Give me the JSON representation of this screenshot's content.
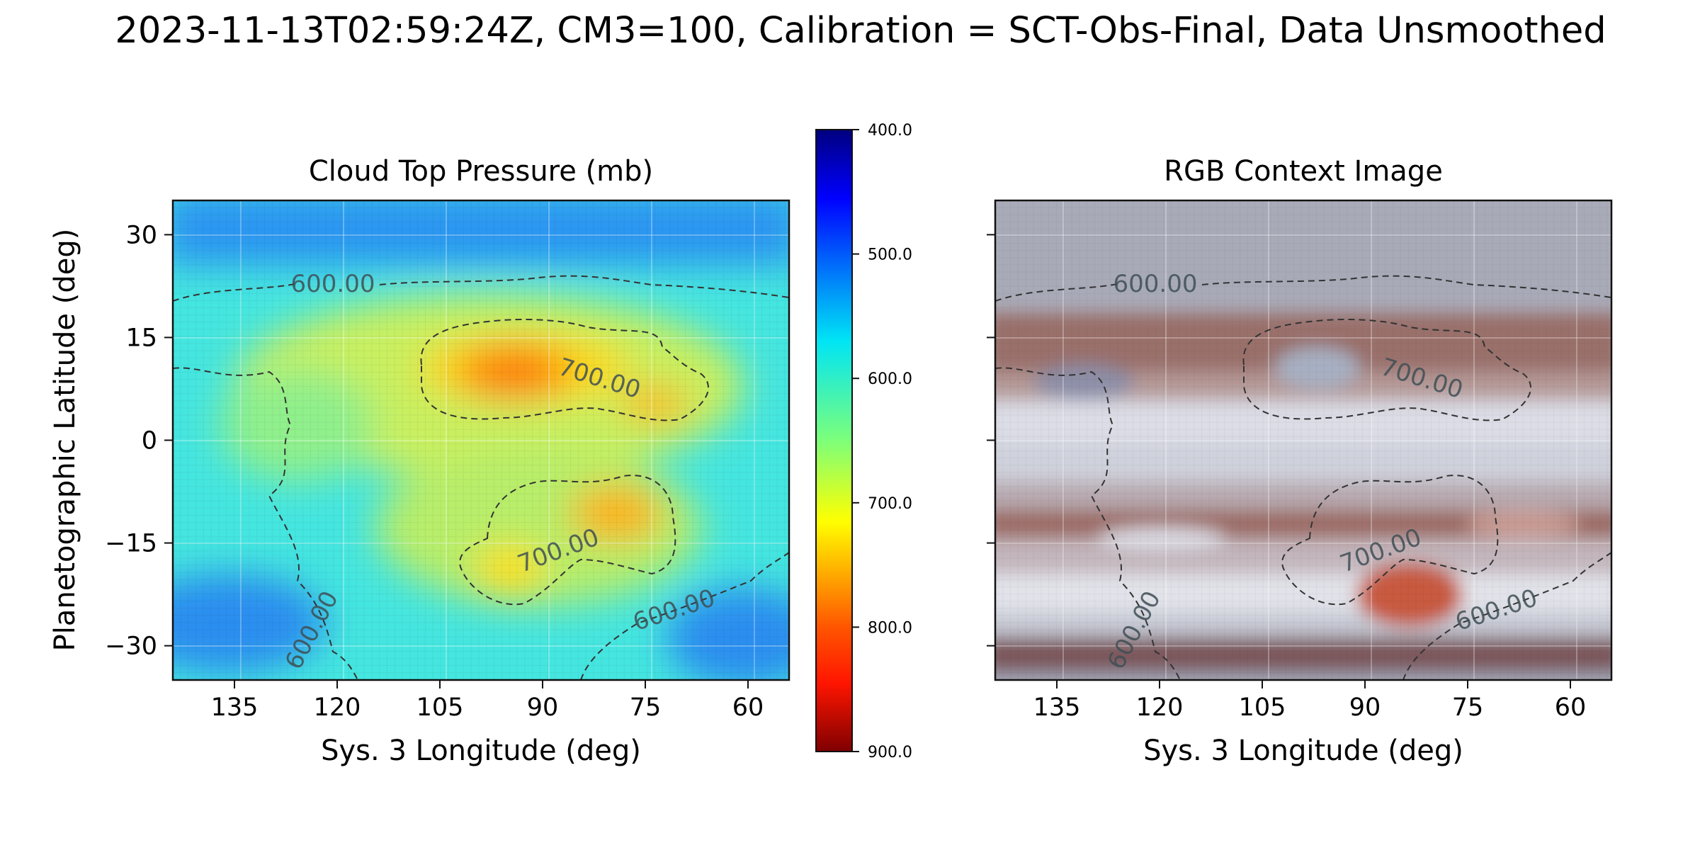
{
  "figure": {
    "suptitle": "2023-11-13T02:59:24Z, CM3=100, Calibration = SCT-Obs-Final, Data Unsmoothed"
  },
  "chart_data": [
    {
      "type": "heatmap",
      "title": "Cloud Top Pressure (mb)",
      "xlabel": "Sys. 3 Longitude (deg)",
      "ylabel": "Planetographic Latitude (deg)",
      "x_reversed": true,
      "xlim": [
        144,
        54
      ],
      "ylim": [
        -35,
        35
      ],
      "xticks": [
        135,
        120,
        105,
        90,
        75,
        60
      ],
      "xtick_labels": [
        "135",
        "120",
        "105",
        "90",
        "75",
        "60"
      ],
      "yticks": [
        30,
        15,
        0,
        -15,
        -30
      ],
      "ytick_labels": [
        "30",
        "15",
        "0",
        "−15",
        "−30"
      ],
      "grid": true,
      "colormap": "jet",
      "colorbar": {
        "vmin": 400,
        "vmax": 900,
        "reversed": true,
        "ticks": [
          400,
          500,
          600,
          700,
          800,
          900
        ],
        "tick_labels": [
          "400.0",
          "500.0",
          "600.0",
          "700.0",
          "800.0",
          "900.0"
        ]
      },
      "contour_levels": [
        "600.00",
        "700.00"
      ],
      "features": [
        {
          "kind": "high-pressure core",
          "lon": 95,
          "lat": 10,
          "value": 810
        },
        {
          "kind": "high-pressure lobe",
          "lon": 75,
          "lat": 5,
          "value": 745
        },
        {
          "kind": "high-pressure core",
          "lon": 79,
          "lat": -12,
          "value": 760
        },
        {
          "kind": "high-pressure core",
          "lon": 94,
          "lat": -19,
          "value": 745
        },
        {
          "kind": "low-pressure band",
          "lat": 28,
          "value": 520
        },
        {
          "kind": "low-pressure region",
          "lon": 137,
          "lat": -28,
          "value": 525
        },
        {
          "kind": "low-pressure region",
          "lon": 60,
          "lat": -30,
          "value": 520
        }
      ]
    },
    {
      "type": "image",
      "title": "RGB Context Image",
      "xlabel": "Sys. 3 Longitude (deg)",
      "x_reversed": true,
      "xlim": [
        144,
        54
      ],
      "ylim": [
        -35,
        35
      ],
      "xticks": [
        135,
        120,
        105,
        90,
        75,
        60
      ],
      "xtick_labels": [
        "135",
        "120",
        "105",
        "90",
        "75",
        "60"
      ],
      "yticks": [
        30,
        15,
        0,
        -15,
        -30
      ],
      "grid": true,
      "contour_levels": [
        "600.00",
        "700.00"
      ],
      "colors": {
        "zone": "#d2d4dc",
        "belt": "#9a6a60",
        "spot": "#c85a40",
        "background": "#b9bcc8"
      }
    }
  ]
}
